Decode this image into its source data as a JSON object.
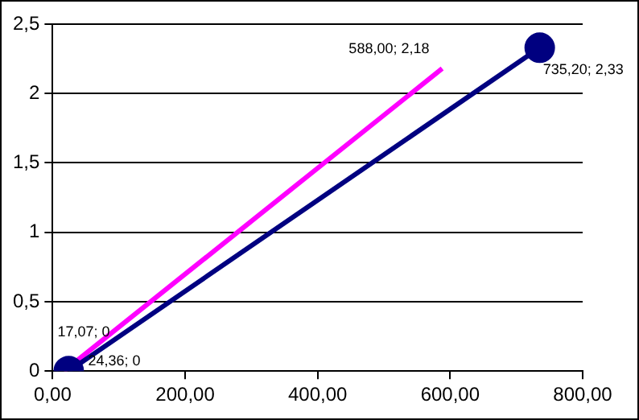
{
  "chart_data": {
    "type": "scatter",
    "series": [
      {
        "type": "line",
        "color": "#000080",
        "marker": "circle",
        "x": [
          24.36,
          735.2
        ],
        "values": [
          0,
          2.33
        ],
        "value_labels": [
          "24,36; 0",
          "735,20; 2,33"
        ]
      },
      {
        "type": "line",
        "color": "#ff00ff",
        "marker": "none",
        "x": [
          17.07,
          588.0
        ],
        "values": [
          0,
          2.18
        ],
        "value_labels": [
          "17,07; 0",
          "588,00; 2,18"
        ]
      }
    ],
    "xlim": [
      0,
      800
    ],
    "xticks": [
      {
        "value": 0,
        "label": "0,00"
      },
      {
        "value": 200,
        "label": "200,00"
      },
      {
        "value": 400,
        "label": "400,00"
      },
      {
        "value": 600,
        "label": "600,00"
      },
      {
        "value": 800,
        "label": "800,00"
      }
    ],
    "ylim": [
      0,
      2.5
    ],
    "yticks": [
      0,
      {
        "value": 0.5,
        "label": "0,5"
      },
      1,
      {
        "value": 1.5,
        "label": "1,5"
      },
      2,
      {
        "value": 2.5,
        "label": "2,5"
      }
    ],
    "grid": "y",
    "legend": false
  }
}
